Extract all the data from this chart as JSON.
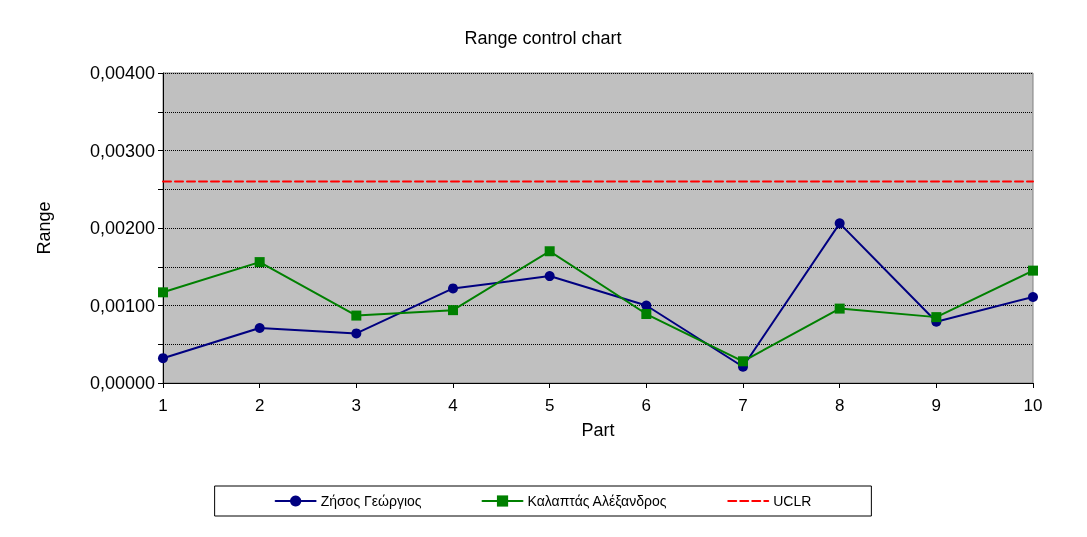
{
  "chart_data": {
    "type": "line",
    "title": "Range control chart",
    "xlabel": "Part",
    "ylabel": "Range",
    "categories": [
      "1",
      "2",
      "3",
      "4",
      "5",
      "6",
      "7",
      "8",
      "9",
      "10"
    ],
    "series": [
      {
        "name": "Ζήσος Γεώργιος",
        "color": "#000080",
        "marker": "circle",
        "values": [
          0.00032,
          0.00071,
          0.00064,
          0.00122,
          0.00138,
          0.001,
          0.00021,
          0.00206,
          0.00079,
          0.00111
        ]
      },
      {
        "name": "Καλαπτάς Αλέξανδρος",
        "color": "#008000",
        "marker": "square",
        "values": [
          0.00117,
          0.00156,
          0.00087,
          0.00094,
          0.0017,
          0.00089,
          0.00028,
          0.00096,
          0.00085,
          0.00145
        ]
      },
      {
        "name": "UCLR",
        "color": "#ff0000",
        "marker": "none",
        "line_style": "dashed",
        "values": [
          0.0026,
          0.0026,
          0.0026,
          0.0026,
          0.0026,
          0.0026,
          0.0026,
          0.0026,
          0.0026,
          0.0026
        ]
      }
    ],
    "ylim": [
      0,
      0.004
    ],
    "yticks": [
      {
        "value": 0,
        "label": "0,00000"
      },
      {
        "value": 0.0005,
        "label": null
      },
      {
        "value": 0.001,
        "label": "0,00100"
      },
      {
        "value": 0.0015,
        "label": null
      },
      {
        "value": 0.002,
        "label": "0,00200"
      },
      {
        "value": 0.0025,
        "label": null
      },
      {
        "value": 0.003,
        "label": "0,00300"
      },
      {
        "value": 0.0035,
        "label": null
      },
      {
        "value": 0.004,
        "label": "0,00400"
      }
    ],
    "grid": "y",
    "legend": "bottom"
  }
}
